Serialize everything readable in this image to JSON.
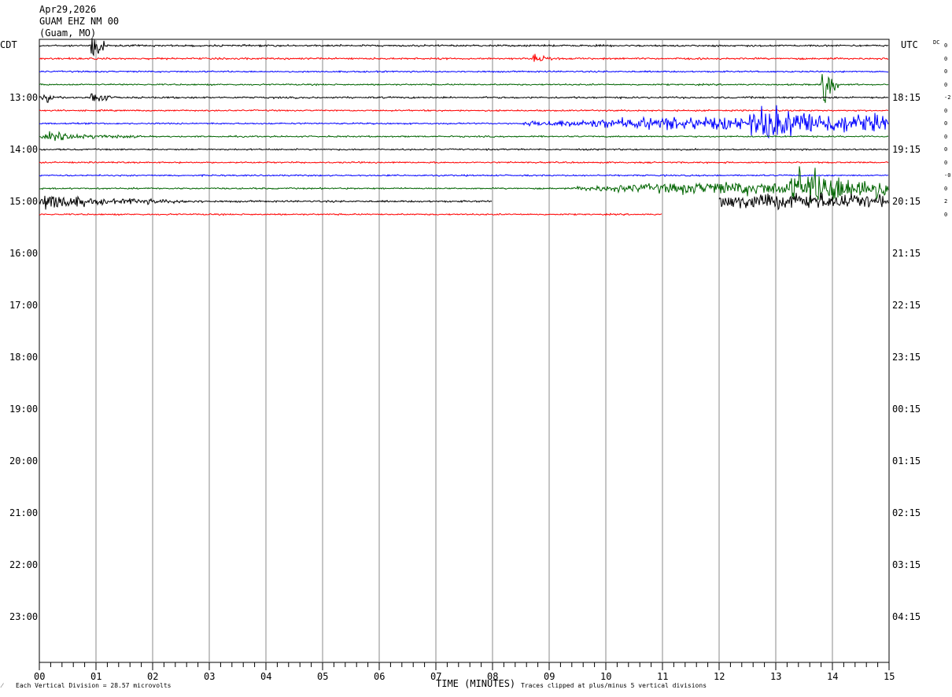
{
  "header": {
    "date": "Apr29,2026",
    "station": "GUAM EHZ NM 00",
    "location": "(Guam, MO)"
  },
  "axis_labels": {
    "left_tz": "CDT",
    "right_tz": "UTC",
    "dc": "DC",
    "xlabel": "TIME (MINUTES)"
  },
  "footer": {
    "corner": "⁄",
    "scale": "Each Vertical Division =   28.57 microvolts",
    "clip": "Traces clipped at plus/minus 5 vertical divisions"
  },
  "chart_data": {
    "type": "line",
    "title": "GUAM EHZ NM 00",
    "xlabel": "TIME (MINUTES)",
    "xlim": [
      0,
      15
    ],
    "x_ticks": [
      "00",
      "01",
      "02",
      "03",
      "04",
      "05",
      "06",
      "07",
      "08",
      "09",
      "10",
      "11",
      "12",
      "13",
      "14",
      "15"
    ],
    "left_hour_labels": [
      {
        "label": "13:00",
        "row": 4
      },
      {
        "label": "14:00",
        "row": 8
      },
      {
        "label": "15:00",
        "row": 12
      },
      {
        "label": "16:00",
        "row": 16
      },
      {
        "label": "17:00",
        "row": 20
      },
      {
        "label": "18:00",
        "row": 24
      },
      {
        "label": "19:00",
        "row": 28
      },
      {
        "label": "20:00",
        "row": 32
      },
      {
        "label": "21:00",
        "row": 36
      },
      {
        "label": "22:00",
        "row": 40
      },
      {
        "label": "23:00",
        "row": 44
      }
    ],
    "right_hour_labels": [
      {
        "label": "18:15",
        "row": 4
      },
      {
        "label": "19:15",
        "row": 8
      },
      {
        "label": "20:15",
        "row": 12
      },
      {
        "label": "21:15",
        "row": 16
      },
      {
        "label": "22:15",
        "row": 20
      },
      {
        "label": "23:15",
        "row": 24
      },
      {
        "label": "00:15",
        "row": 28
      },
      {
        "label": "01:15",
        "row": 32
      },
      {
        "label": "02:15",
        "row": 36
      },
      {
        "label": "03:15",
        "row": 40
      },
      {
        "label": "04:15",
        "row": 44
      }
    ],
    "dc_offsets": [
      "0",
      "0",
      "0",
      "0",
      "-2",
      "0",
      "0",
      "0",
      "0",
      "0",
      "-0",
      "0",
      "2",
      "0"
    ],
    "series_colors": [
      "#000000",
      "#ff0000",
      "#0000ff",
      "#006400"
    ],
    "traces": [
      {
        "row": 0,
        "color": "#000000",
        "end": 15,
        "noise": 1.2,
        "events": [
          {
            "t": 0.9,
            "amp": 40,
            "dur": 0.25
          }
        ]
      },
      {
        "row": 1,
        "color": "#ff0000",
        "end": 15,
        "noise": 1.2,
        "events": [
          {
            "t": 8.7,
            "amp": 5,
            "dur": 0.5
          }
        ]
      },
      {
        "row": 2,
        "color": "#0000ff",
        "end": 15,
        "noise": 1.0,
        "events": []
      },
      {
        "row": 3,
        "color": "#006400",
        "end": 15,
        "noise": 1.0,
        "events": [
          {
            "t": 13.8,
            "amp": 45,
            "dur": 0.3
          }
        ]
      },
      {
        "row": 4,
        "color": "#000000",
        "end": 15,
        "noise": 1.2,
        "events": [
          {
            "t": 0.05,
            "amp": 8,
            "dur": 0.3
          },
          {
            "t": 0.9,
            "amp": 18,
            "dur": 0.35
          }
        ]
      },
      {
        "row": 5,
        "color": "#ff0000",
        "end": 15,
        "noise": 1.0,
        "events": []
      },
      {
        "row": 6,
        "color": "#0000ff",
        "end": 15,
        "noise": 1.0,
        "ramp": [
          8.5,
          11.2,
          12
        ],
        "events": [
          {
            "t": 12.5,
            "amp": 16,
            "dur": 2.5
          }
        ]
      },
      {
        "row": 7,
        "color": "#006400",
        "end": 15,
        "noise": 1.0,
        "events": [
          {
            "t": 0.0,
            "amp": 5,
            "dur": 1.8
          }
        ]
      },
      {
        "row": 8,
        "color": "#000000",
        "end": 15,
        "noise": 1.0,
        "events": []
      },
      {
        "row": 9,
        "color": "#ff0000",
        "end": 15,
        "noise": 1.0,
        "events": []
      },
      {
        "row": 10,
        "color": "#0000ff",
        "end": 15,
        "noise": 1.0,
        "events": []
      },
      {
        "row": 11,
        "color": "#006400",
        "end": 15,
        "noise": 1.0,
        "ramp": [
          9.5,
          12,
          14
        ],
        "events": [
          {
            "t": 13.2,
            "amp": 20,
            "dur": 2.2
          }
        ]
      },
      {
        "row": 12,
        "color": "#000000",
        "end": 8.0,
        "noise": 1.2,
        "events": [
          {
            "t": 0.0,
            "amp": 14,
            "dur": 1.4
          },
          {
            "t": 1.4,
            "amp": 4,
            "dur": 1.5
          }
        ],
        "segments": [
          {
            "start": 12.0,
            "end": 15,
            "amp": 12
          }
        ]
      },
      {
        "row": 13,
        "color": "#ff0000",
        "end": 11.0,
        "noise": 1.0,
        "events": []
      }
    ]
  }
}
